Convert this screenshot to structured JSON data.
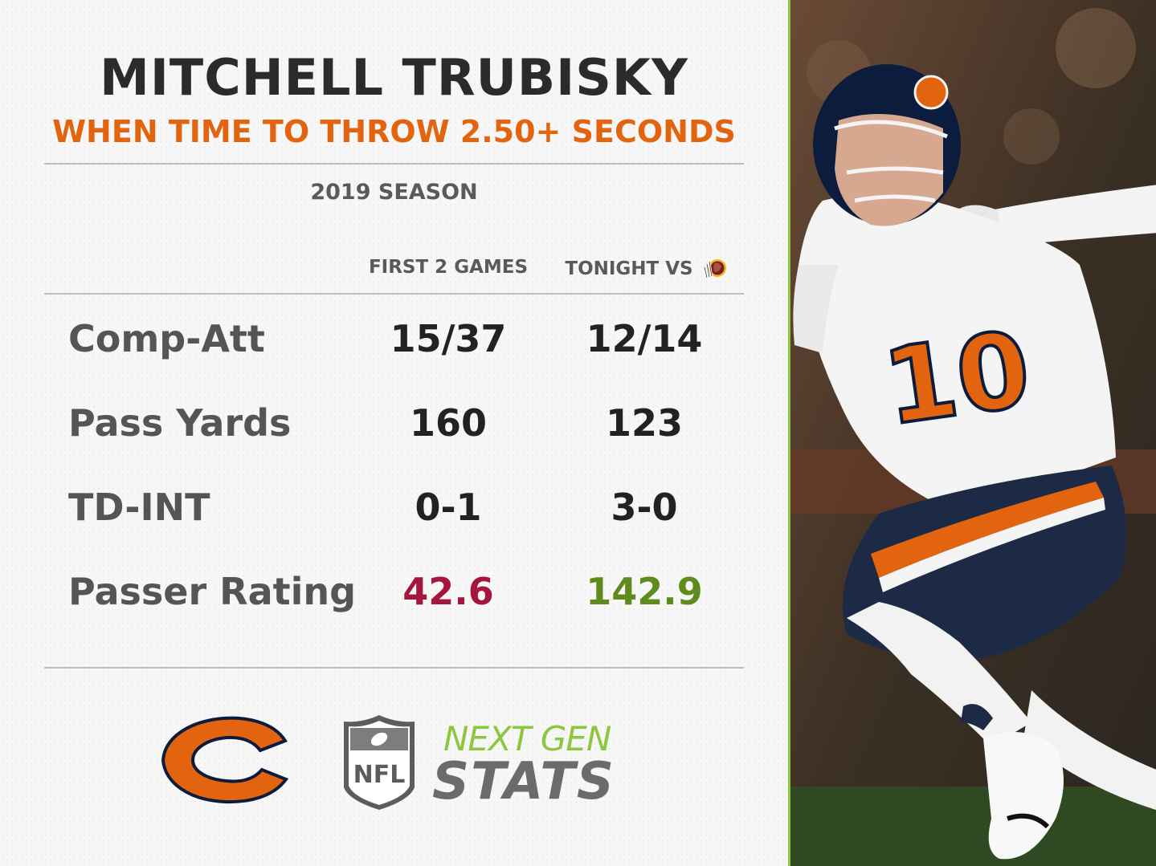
{
  "header": {
    "title": "MITCHELL TRUBISKY",
    "subtitle": "WHEN TIME TO THROW 2.50+ SECONDS",
    "season": "2019 SEASON"
  },
  "columns": {
    "first": "FIRST 2 GAMES",
    "second": "TONIGHT VS"
  },
  "rows": [
    {
      "label": "Comp-Att",
      "first": "15/37",
      "second": "12/14"
    },
    {
      "label": "Pass Yards",
      "first": "160",
      "second": "123"
    },
    {
      "label": "TD-INT",
      "first": "0-1",
      "second": "3-0"
    },
    {
      "label": "Passer Rating",
      "first": "42.6",
      "second": "142.9"
    }
  ],
  "footer": {
    "nfl_text": "NFL",
    "ngs_line1": "NEXT GEN",
    "ngs_line2": "STATS"
  },
  "player_photo": {
    "jersey_number": "10"
  },
  "colors": {
    "accent_orange": "#e2640f",
    "rating_bad": "#a5163d",
    "rating_good": "#5f8a1c",
    "ngs_green": "#8dc63f"
  }
}
